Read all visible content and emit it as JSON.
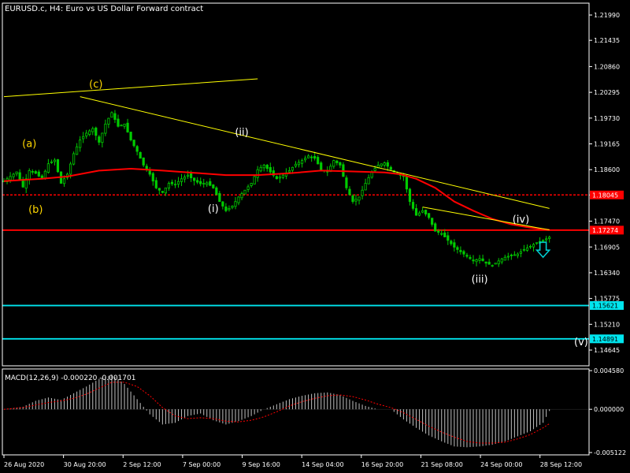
{
  "chart_data": [
    {
      "type": "candlestick",
      "title": "EURUSD.c, H4:  Euro vs US Dollar Forward contract",
      "ylim": [
        1.143,
        1.2225
      ],
      "y_ticks": [
        "1.21990",
        "1.21435",
        "1.20860",
        "1.20295",
        "1.19730",
        "1.19165",
        "1.18600",
        "1.18045",
        "1.17470",
        "1.16905",
        "1.16340",
        "1.15775",
        "1.15210",
        "1.14645"
      ],
      "x_ticks": [
        "26 Aug 2020",
        "30 Aug 20:00",
        "2 Sep 12:00",
        "7 Sep 00:00",
        "9 Sep 16:00",
        "14 Sep 04:00",
        "16 Sep 20:00",
        "21 Sep 08:00",
        "24 Sep 00:00",
        "28 Sep 12:00"
      ],
      "price_path": [
        [
          0,
          1.1835
        ],
        [
          4,
          1.1855
        ],
        [
          6,
          1.1822
        ],
        [
          8,
          1.1858
        ],
        [
          10,
          1.1852
        ],
        [
          12,
          1.184
        ],
        [
          14,
          1.1873
        ],
        [
          16,
          1.1881
        ],
        [
          18,
          1.183
        ],
        [
          20,
          1.185
        ],
        [
          22,
          1.1895
        ],
        [
          24,
          1.1925
        ],
        [
          26,
          1.194
        ],
        [
          28,
          1.195
        ],
        [
          30,
          1.192
        ],
        [
          32,
          1.196
        ],
        [
          34,
          1.1985
        ],
        [
          36,
          1.1955
        ],
        [
          38,
          1.196
        ],
        [
          40,
          1.1925
        ],
        [
          42,
          1.19
        ],
        [
          44,
          1.187
        ],
        [
          46,
          1.185
        ],
        [
          48,
          1.182
        ],
        [
          50,
          1.181
        ],
        [
          52,
          1.183
        ],
        [
          54,
          1.1828
        ],
        [
          56,
          1.184
        ],
        [
          58,
          1.1848
        ],
        [
          60,
          1.1836
        ],
        [
          62,
          1.1829
        ],
        [
          64,
          1.1831
        ],
        [
          66,
          1.182
        ],
        [
          68,
          1.179
        ],
        [
          70,
          1.177
        ],
        [
          72,
          1.178
        ],
        [
          74,
          1.18
        ],
        [
          76,
          1.1815
        ],
        [
          78,
          1.183
        ],
        [
          80,
          1.186
        ],
        [
          82,
          1.187
        ],
        [
          84,
          1.1855
        ],
        [
          86,
          1.184
        ],
        [
          88,
          1.1848
        ],
        [
          90,
          1.1858
        ],
        [
          92,
          1.1872
        ],
        [
          94,
          1.188
        ],
        [
          96,
          1.189
        ],
        [
          98,
          1.1885
        ],
        [
          100,
          1.186
        ],
        [
          102,
          1.1855
        ],
        [
          104,
          1.188
        ],
        [
          106,
          1.187
        ],
        [
          108,
          1.182
        ],
        [
          110,
          1.179
        ],
        [
          112,
          1.18
        ],
        [
          114,
          1.183
        ],
        [
          116,
          1.1855
        ],
        [
          118,
          1.187
        ],
        [
          120,
          1.1875
        ],
        [
          122,
          1.186
        ],
        [
          124,
          1.185
        ],
        [
          126,
          1.1845
        ],
        [
          128,
          1.179
        ],
        [
          130,
          1.176
        ],
        [
          132,
          1.177
        ],
        [
          134,
          1.1755
        ],
        [
          136,
          1.1725
        ],
        [
          138,
          1.172
        ],
        [
          140,
          1.1705
        ],
        [
          142,
          1.169
        ],
        [
          144,
          1.168
        ],
        [
          146,
          1.167
        ],
        [
          148,
          1.166
        ],
        [
          150,
          1.1665
        ],
        [
          152,
          1.1655
        ],
        [
          154,
          1.165
        ],
        [
          156,
          1.166
        ],
        [
          158,
          1.1668
        ],
        [
          160,
          1.1672
        ],
        [
          162,
          1.1675
        ],
        [
          164,
          1.1685
        ],
        [
          166,
          1.1692
        ],
        [
          168,
          1.17
        ],
        [
          170,
          1.1705
        ],
        [
          172,
          1.1712
        ]
      ],
      "ma_path": [
        [
          0,
          1.1835
        ],
        [
          12,
          1.184
        ],
        [
          20,
          1.1845
        ],
        [
          30,
          1.1858
        ],
        [
          40,
          1.1862
        ],
        [
          50,
          1.1858
        ],
        [
          60,
          1.1853
        ],
        [
          70,
          1.1848
        ],
        [
          80,
          1.1848
        ],
        [
          90,
          1.1852
        ],
        [
          100,
          1.1858
        ],
        [
          110,
          1.1856
        ],
        [
          120,
          1.1854
        ],
        [
          125,
          1.185
        ],
        [
          130,
          1.184
        ],
        [
          136,
          1.182
        ],
        [
          142,
          1.179
        ],
        [
          148,
          1.177
        ],
        [
          154,
          1.1752
        ],
        [
          160,
          1.174
        ],
        [
          166,
          1.1733
        ],
        [
          172,
          1.1728
        ]
      ],
      "trendlines": [
        {
          "color": "#ffff00",
          "points": [
            [
              1.202,
              0
            ],
            [
              1.2059,
              80
            ]
          ]
        },
        {
          "color": "#ffff00",
          "points": [
            [
              1.202,
              24
            ],
            [
              1.1775,
              172
            ]
          ]
        },
        {
          "color": "#ffff00",
          "points": [
            [
              1.1778,
              132
            ],
            [
              1.1728,
              172
            ]
          ]
        }
      ],
      "hlines": [
        {
          "value": 1.18045,
          "label": "1.18045",
          "line_color": "#ff0000",
          "label_bg": "#ff0000",
          "label_color": "#ffffff",
          "style": "dashed"
        },
        {
          "value": 1.17274,
          "label": "1.17274",
          "line_color": "#ff0000",
          "label_bg": "#ff0000",
          "label_color": "#ffffff",
          "style": "solid"
        },
        {
          "value": 1.15621,
          "label": "1.15621",
          "line_color": "#00e5ee",
          "label_bg": "#00e5ee",
          "label_color": "#000000",
          "style": "solid"
        },
        {
          "value": 1.14891,
          "label": "1.14891",
          "line_color": "#00e5ee",
          "label_bg": "#00e5ee",
          "label_color": "#000000",
          "style": "solid"
        }
      ],
      "wave_labels": [
        {
          "text": "(a)",
          "index": 8,
          "value": 1.191,
          "color": "#ffd700"
        },
        {
          "text": "(b)",
          "index": 10,
          "value": 1.1765,
          "color": "#ffd700"
        },
        {
          "text": "(c)",
          "index": 29,
          "value": 1.204,
          "color": "#ffd700"
        },
        {
          "text": "(i)",
          "index": 66,
          "value": 1.1767,
          "color": "#ffffff"
        },
        {
          "text": "(ii)",
          "index": 75,
          "value": 1.1935,
          "color": "#ffffff"
        },
        {
          "text": "(iii)",
          "index": 150,
          "value": 1.1612,
          "color": "#ffffff"
        },
        {
          "text": "(iv)",
          "index": 163,
          "value": 1.1744,
          "color": "#ffffff"
        },
        {
          "text": "(v)",
          "index": 182,
          "value": 1.1475,
          "color": "#ffffff"
        }
      ],
      "down_arrow": {
        "icon": "down-arrow-icon",
        "index": 170,
        "value": 1.168,
        "color": "#00ced1"
      },
      "colors": {
        "candle": "#00cc00",
        "ma": "#ff0000",
        "grid": "#222222",
        "axis": "#ffffff"
      }
    },
    {
      "type": "histogram",
      "title": "MACD(12,26,9) -0.000220 -0.001701",
      "ylim": [
        -0.0054,
        0.00478
      ],
      "y_ticks": [
        "0.004580",
        "0.000000",
        "-0.005122"
      ],
      "histogram_path": [
        [
          0,
          0.0
        ],
        [
          6,
          0.0003
        ],
        [
          10,
          0.001
        ],
        [
          14,
          0.0014
        ],
        [
          18,
          0.0011
        ],
        [
          22,
          0.0019
        ],
        [
          26,
          0.0027
        ],
        [
          30,
          0.0036
        ],
        [
          34,
          0.0041
        ],
        [
          38,
          0.003
        ],
        [
          42,
          0.0012
        ],
        [
          46,
          -0.0006
        ],
        [
          50,
          -0.0018
        ],
        [
          54,
          -0.0016
        ],
        [
          58,
          -0.0008
        ],
        [
          62,
          -0.0005
        ],
        [
          66,
          -0.0013
        ],
        [
          70,
          -0.0018
        ],
        [
          74,
          -0.0014
        ],
        [
          78,
          -0.0008
        ],
        [
          82,
          0.0
        ],
        [
          86,
          0.0006
        ],
        [
          90,
          0.0012
        ],
        [
          94,
          0.0016
        ],
        [
          98,
          0.0019
        ],
        [
          102,
          0.002
        ],
        [
          106,
          0.0017
        ],
        [
          110,
          0.001
        ],
        [
          114,
          0.0004
        ],
        [
          118,
          0.0
        ],
        [
          122,
          0.0
        ],
        [
          126,
          -0.0012
        ],
        [
          130,
          -0.0022
        ],
        [
          134,
          -0.0031
        ],
        [
          138,
          -0.0038
        ],
        [
          142,
          -0.0044
        ],
        [
          146,
          -0.0045
        ],
        [
          150,
          -0.0044
        ],
        [
          154,
          -0.0042
        ],
        [
          158,
          -0.0038
        ],
        [
          162,
          -0.0032
        ],
        [
          166,
          -0.0026
        ],
        [
          170,
          -0.0016
        ],
        [
          172,
          -0.0002
        ]
      ],
      "signal_path": [
        [
          0,
          0.0
        ],
        [
          6,
          0.0002
        ],
        [
          10,
          0.0005
        ],
        [
          14,
          0.0008
        ],
        [
          18,
          0.001
        ],
        [
          22,
          0.0013
        ],
        [
          26,
          0.0018
        ],
        [
          30,
          0.0025
        ],
        [
          34,
          0.0032
        ],
        [
          38,
          0.0032
        ],
        [
          42,
          0.0027
        ],
        [
          46,
          0.0016
        ],
        [
          50,
          0.0002
        ],
        [
          54,
          -0.0008
        ],
        [
          58,
          -0.0011
        ],
        [
          62,
          -0.001
        ],
        [
          66,
          -0.0011
        ],
        [
          70,
          -0.0014
        ],
        [
          74,
          -0.0015
        ],
        [
          78,
          -0.0013
        ],
        [
          82,
          -0.0009
        ],
        [
          86,
          -0.0003
        ],
        [
          90,
          0.0004
        ],
        [
          94,
          0.0009
        ],
        [
          98,
          0.0013
        ],
        [
          102,
          0.0016
        ],
        [
          106,
          0.0017
        ],
        [
          110,
          0.0015
        ],
        [
          114,
          0.0011
        ],
        [
          118,
          0.0006
        ],
        [
          122,
          0.0002
        ],
        [
          126,
          -0.0004
        ],
        [
          130,
          -0.0012
        ],
        [
          134,
          -0.002
        ],
        [
          138,
          -0.0027
        ],
        [
          142,
          -0.0033
        ],
        [
          146,
          -0.0038
        ],
        [
          150,
          -0.004
        ],
        [
          154,
          -0.004
        ],
        [
          158,
          -0.0039
        ],
        [
          162,
          -0.0035
        ],
        [
          166,
          -0.003
        ],
        [
          170,
          -0.0022
        ],
        [
          172,
          -0.0017
        ]
      ],
      "colors": {
        "histogram": "#c0c0c0",
        "signal": "#ff0000"
      }
    }
  ]
}
